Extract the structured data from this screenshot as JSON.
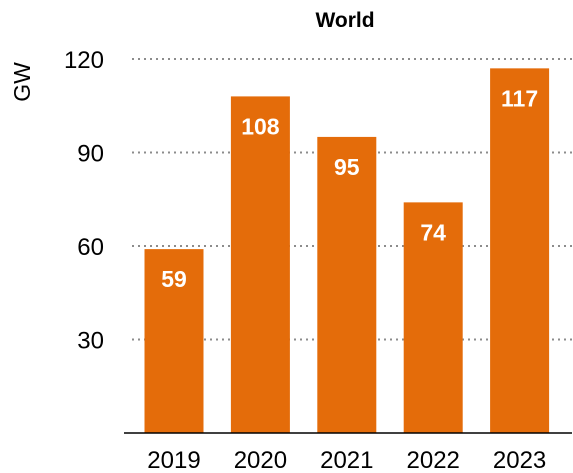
{
  "chart_data": {
    "type": "bar",
    "title": "World",
    "ylabel": "GW",
    "xlabel": "",
    "categories": [
      "2019",
      "2020",
      "2021",
      "2022",
      "2023"
    ],
    "values": [
      59,
      108,
      95,
      74,
      117
    ],
    "data_labels": [
      "59",
      "108",
      "95",
      "74",
      "117"
    ],
    "ylim": [
      0,
      120
    ],
    "yticks": [
      30,
      60,
      90,
      120
    ],
    "ytick_labels": [
      "30",
      "60",
      "90",
      "120"
    ],
    "grid": true,
    "bar_color": "#e46c0a",
    "data_label_color": "#ffffff"
  }
}
